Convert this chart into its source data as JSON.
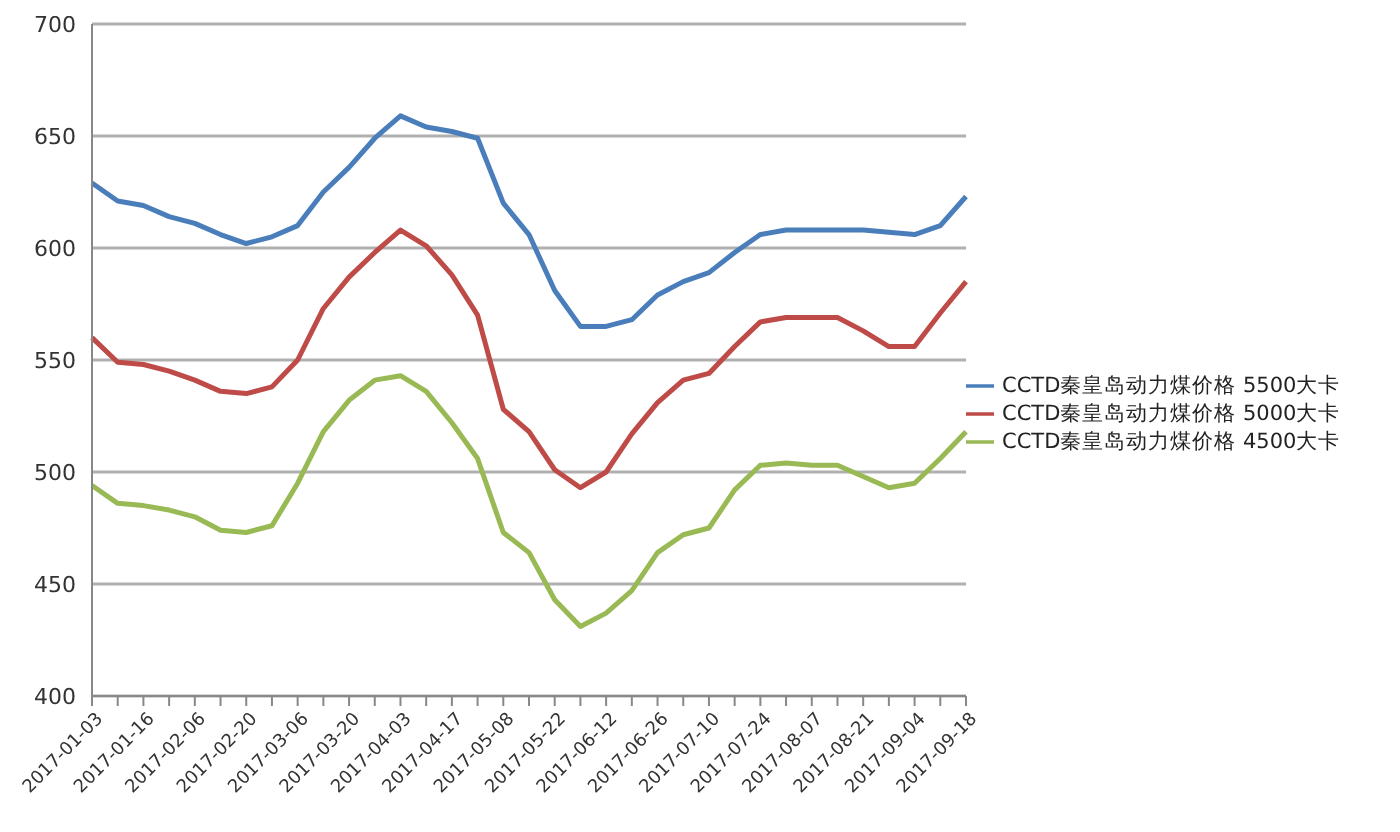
{
  "chart_data": {
    "type": "line",
    "categories": [
      "2017-01-03",
      null,
      "2017-01-16",
      null,
      "2017-02-06",
      null,
      "2017-02-20",
      null,
      "2017-03-06",
      null,
      "2017-03-20",
      null,
      "2017-04-03",
      null,
      "2017-04-17",
      null,
      "2017-05-08",
      null,
      "2017-05-22",
      null,
      "2017-06-12",
      null,
      "2017-06-26",
      null,
      "2017-07-10",
      null,
      "2017-07-24",
      null,
      "2017-08-07",
      null,
      "2017-08-21",
      null,
      "2017-09-04",
      null,
      "2017-09-18"
    ],
    "series": [
      {
        "name": "CCTD秦皇岛动力煤价格  5500大卡",
        "color": "#4a7ebb",
        "values": [
          629,
          621,
          619,
          614,
          611,
          606,
          602,
          605,
          610,
          625,
          636,
          649,
          659,
          654,
          652,
          649,
          620,
          606,
          581,
          565,
          565,
          568,
          579,
          585,
          589,
          598,
          606,
          608,
          608,
          608,
          608,
          607,
          606,
          610,
          623
        ]
      },
      {
        "name": "CCTD秦皇岛动力煤价格  5000大卡",
        "color": "#be4b48",
        "values": [
          560,
          549,
          548,
          545,
          541,
          536,
          535,
          538,
          550,
          573,
          587,
          598,
          608,
          601,
          588,
          570,
          528,
          518,
          501,
          493,
          500,
          517,
          531,
          541,
          544,
          556,
          567,
          569,
          569,
          569,
          563,
          556,
          556,
          571,
          585
        ]
      },
      {
        "name": "CCTD秦皇岛动力煤价格  4500大卡",
        "color": "#98b954",
        "values": [
          494,
          486,
          485,
          483,
          480,
          474,
          473,
          476,
          495,
          518,
          532,
          541,
          543,
          536,
          522,
          506,
          473,
          464,
          443,
          431,
          437,
          447,
          464,
          472,
          475,
          492,
          503,
          504,
          503,
          503,
          498,
          493,
          495,
          506,
          518
        ]
      }
    ],
    "ylim": [
      400,
      700
    ],
    "yticks": [
      400,
      450,
      500,
      550,
      600,
      650,
      700
    ],
    "grid": "y",
    "legend": "right",
    "marker": "none",
    "line_style": "solid"
  }
}
